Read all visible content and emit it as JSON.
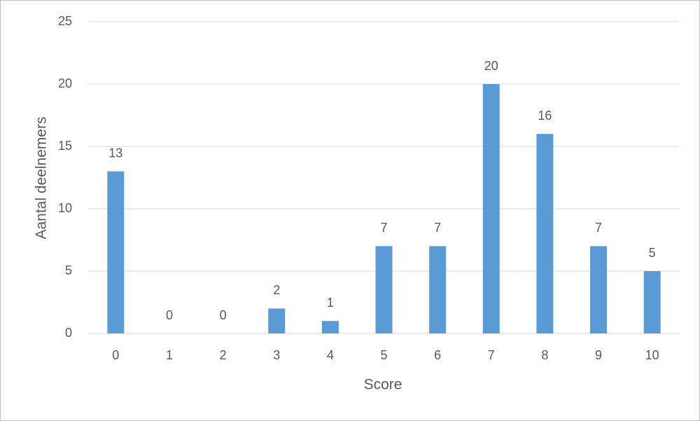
{
  "chart_data": {
    "type": "bar",
    "x_label": "Score",
    "y_label": "Aantal deelnemers",
    "categories": [
      "0",
      "1",
      "2",
      "3",
      "4",
      "5",
      "6",
      "7",
      "8",
      "9",
      "10"
    ],
    "values": [
      13,
      0,
      0,
      2,
      1,
      7,
      7,
      20,
      16,
      7,
      5
    ],
    "color": "#5b9bd5",
    "ylim": [
      0,
      25
    ],
    "yticks": [
      0,
      5,
      10,
      15,
      20,
      25
    ],
    "grid": true,
    "data_labels": true
  }
}
